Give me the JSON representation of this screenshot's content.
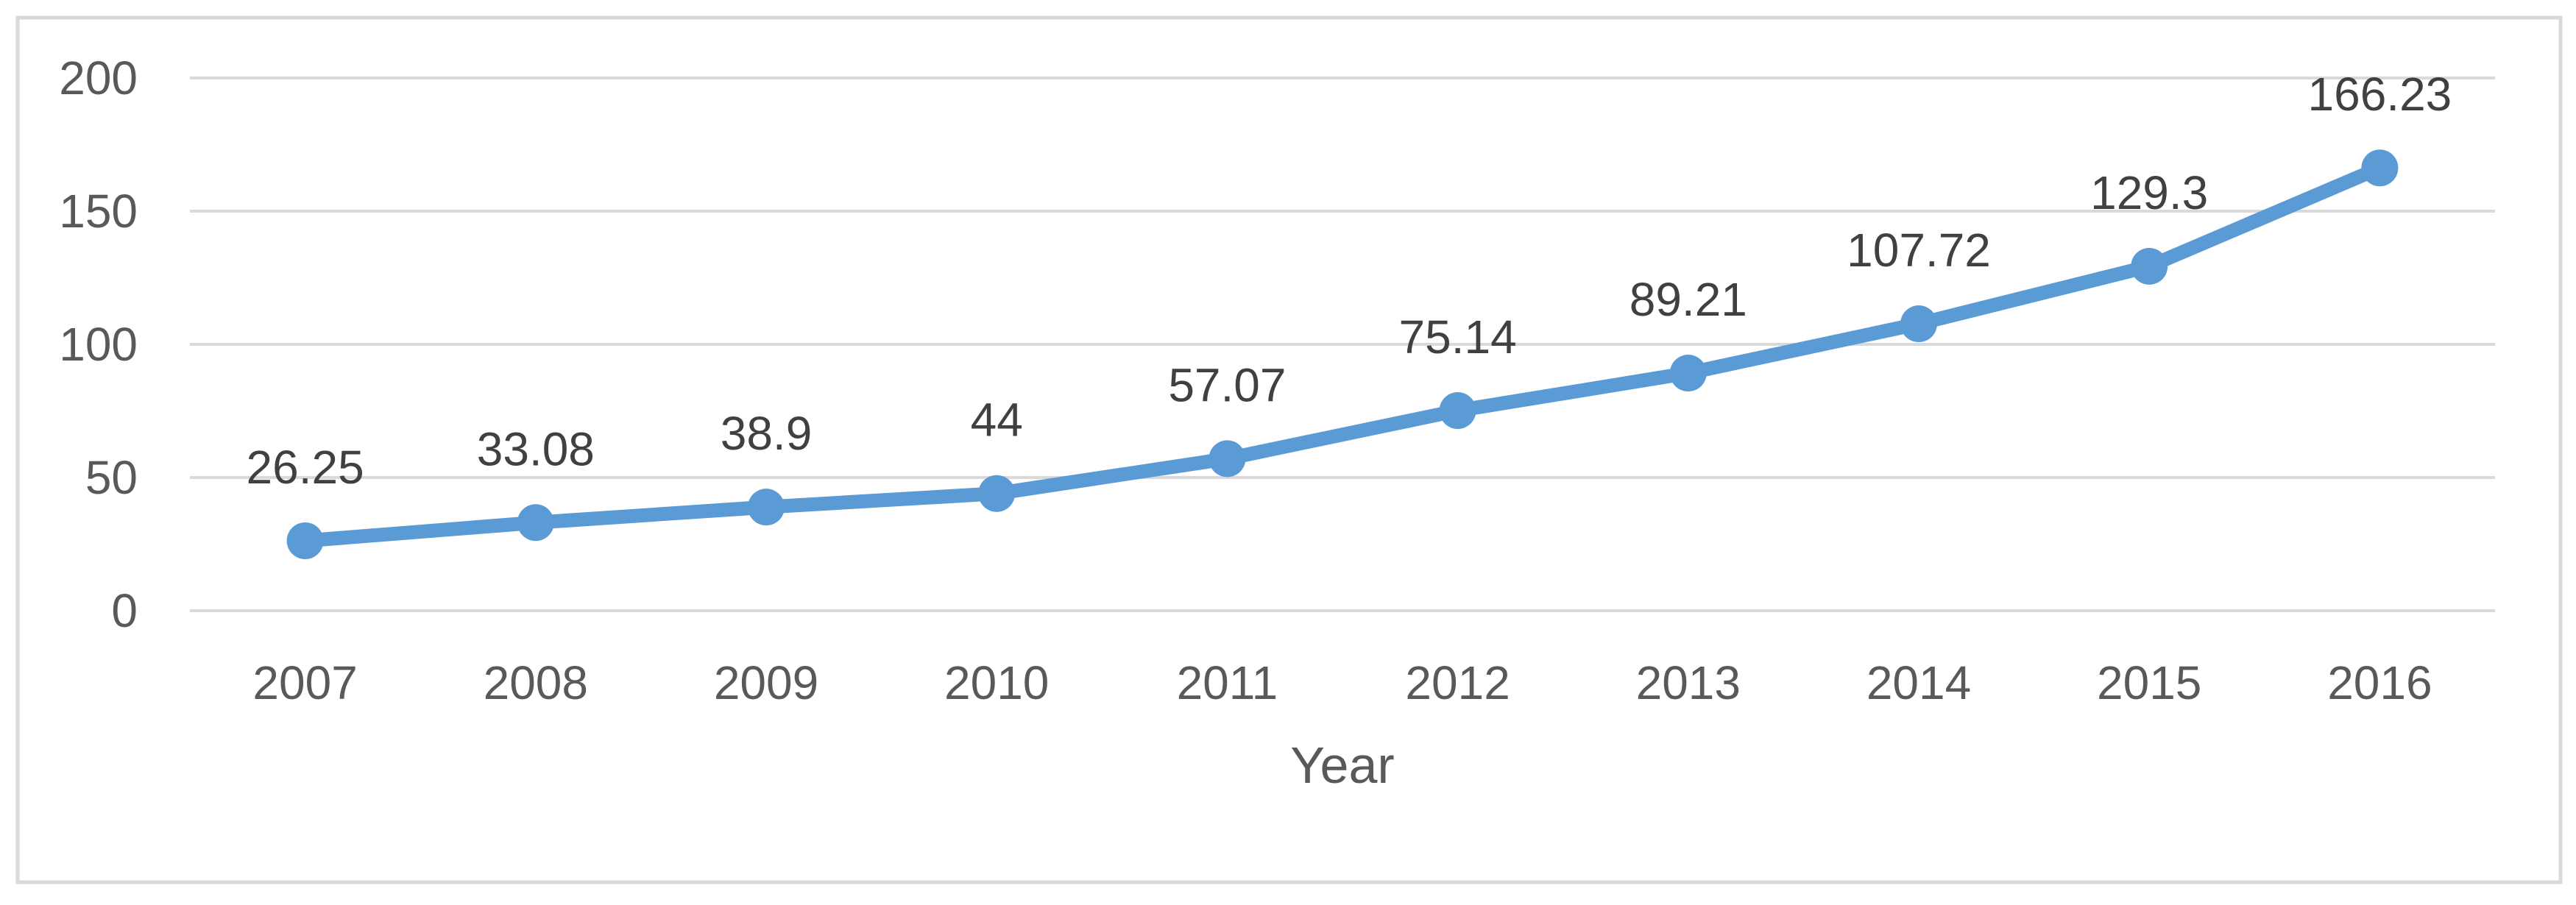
{
  "chart_data": {
    "type": "line",
    "title": "",
    "xlabel": "Year",
    "ylabel": "",
    "categories": [
      "2007",
      "2008",
      "2009",
      "2010",
      "2011",
      "2012",
      "2013",
      "2014",
      "2015",
      "2016"
    ],
    "values": [
      26.25,
      33.08,
      38.9,
      44,
      57.07,
      75.14,
      89.21,
      107.72,
      129.3,
      166.23
    ],
    "data_labels": [
      "26.25",
      "33.08",
      "38.9",
      "44",
      "57.07",
      "75.14",
      "89.21",
      "107.72",
      "129.3",
      "166.23"
    ],
    "yticks": [
      0,
      50,
      100,
      150,
      200
    ],
    "ytick_labels": [
      "0",
      "50",
      "100",
      "150",
      "200"
    ],
    "ylim": [
      0,
      200
    ],
    "grid": true,
    "legend": false,
    "marker": "circle",
    "colors": {
      "line": "#5B9BD5",
      "marker": "#5B9BD5",
      "gridline": "#D9D9D9",
      "border": "#D9D9D9",
      "axis_text": "#595959",
      "data_label_text": "#404040",
      "background": "#FFFFFF"
    }
  }
}
